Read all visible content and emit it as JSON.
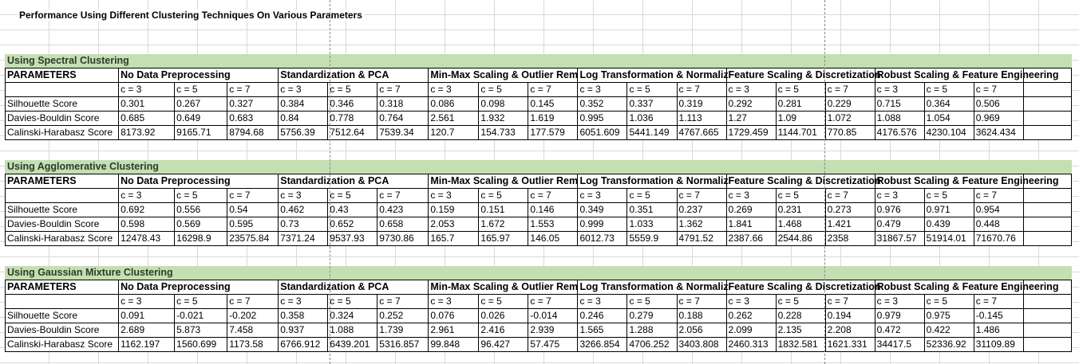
{
  "sheet_title": "Performance Using Different Clustering Techniques On Various Parameters",
  "header_label": "PARAMETERS",
  "groups": [
    "No Data Preprocessing",
    "Standardization & PCA",
    "Min-Max Scaling & Outlier Rem",
    "Log Transformation & Normaliz",
    "Feature Scaling & Discretization",
    "Robust Scaling & Feature Engineering"
  ],
  "c_labels": [
    "c = 3",
    "c = 5",
    "c = 7"
  ],
  "sections": [
    {
      "title": "Using Spectral Clustering",
      "rows": [
        {
          "label": "Silhouette Score",
          "values": [
            "0.301",
            "0.267",
            "0.327",
            "0.384",
            "0.346",
            "0.318",
            "0.086",
            "0.098",
            "0.145",
            "0.352",
            "0.337",
            "0.319",
            "0.292",
            "0.281",
            "0.229",
            "0.715",
            "0.364",
            "0.506"
          ]
        },
        {
          "label": "Davies-Bouldin Score",
          "values": [
            "0.685",
            "0.649",
            "0.683",
            "0.84",
            "0.778",
            "0.764",
            "2.561",
            "1.932",
            "1.619",
            "0.995",
            "1.036",
            "1.113",
            "1.27",
            "1.09",
            "1.072",
            "1.088",
            "1.054",
            "0.969"
          ]
        },
        {
          "label": "Calinski-Harabasz Score",
          "values": [
            "8173.92",
            "9165.71",
            "8794.68",
            "5756.39",
            "7512.64",
            "7539.34",
            "120.7",
            "154.733",
            "177.579",
            "6051.609",
            "5441.149",
            "4767.665",
            "1729.459",
            "1144.701",
            "770.85",
            "4176.576",
            "4230.104",
            "3624.434"
          ]
        }
      ]
    },
    {
      "title": "Using Agglomerative Clustering",
      "rows": [
        {
          "label": "Silhouette Score",
          "values": [
            "0.692",
            "0.556",
            "0.54",
            "0.462",
            "0.43",
            "0.423",
            "0.159",
            "0.151",
            "0.146",
            "0.349",
            "0.351",
            "0.237",
            "0.269",
            "0.231",
            "0.273",
            "0.976",
            "0.971",
            "0.954"
          ]
        },
        {
          "label": "Davies-Bouldin Score",
          "values": [
            "0.598",
            "0.569",
            "0.595",
            "0.73",
            "0.652",
            "0.658",
            "2.053",
            "1.672",
            "1.553",
            "0.999",
            "1.033",
            "1.362",
            "1.841",
            "1.468",
            "1.421",
            "0.479",
            "0.439",
            "0.448"
          ]
        },
        {
          "label": "Calinski-Harabasz Score",
          "values": [
            "12478.43",
            "16298.9",
            "23575.84",
            "7371.24",
            "9537.93",
            "9730.86",
            "165.7",
            "165.97",
            "146.05",
            "6012.73",
            "5559.9",
            "4791.52",
            "2387.66",
            "2544.86",
            "2358",
            "31867.57",
            "51914.01",
            "71670.76"
          ]
        }
      ]
    },
    {
      "title": "Using Gaussian Mixture Clustering",
      "rows": [
        {
          "label": "Silhouette Score",
          "values": [
            "0.091",
            "-0.021",
            "-0.202",
            "0.358",
            "0.324",
            "0.252",
            "0.076",
            "0.026",
            "-0.014",
            "0.246",
            "0.279",
            "0.188",
            "0.262",
            "0.228",
            "0.194",
            "0.979",
            "0.975",
            "-0.145"
          ]
        },
        {
          "label": "Davies-Bouldin Score",
          "values": [
            "2.689",
            "5.873",
            "7.458",
            "0.937",
            "1.088",
            "1.739",
            "2.961",
            "2.416",
            "2.939",
            "1.565",
            "1.288",
            "2.056",
            "2.099",
            "2.135",
            "2.208",
            "0.472",
            "0.422",
            "1.486"
          ]
        },
        {
          "label": "Calinski-Harabasz Score",
          "values": [
            "1162.197",
            "1560.699",
            "1173.58",
            "6766.912",
            "6439.201",
            "5316.857",
            "99.848",
            "96.427",
            "57.475",
            "3266.854",
            "4706.252",
            "3403.808",
            "2460.313",
            "1832.581",
            "1621.331",
            "34417.5",
            "52336.92",
            "31109.89"
          ]
        }
      ]
    }
  ]
}
